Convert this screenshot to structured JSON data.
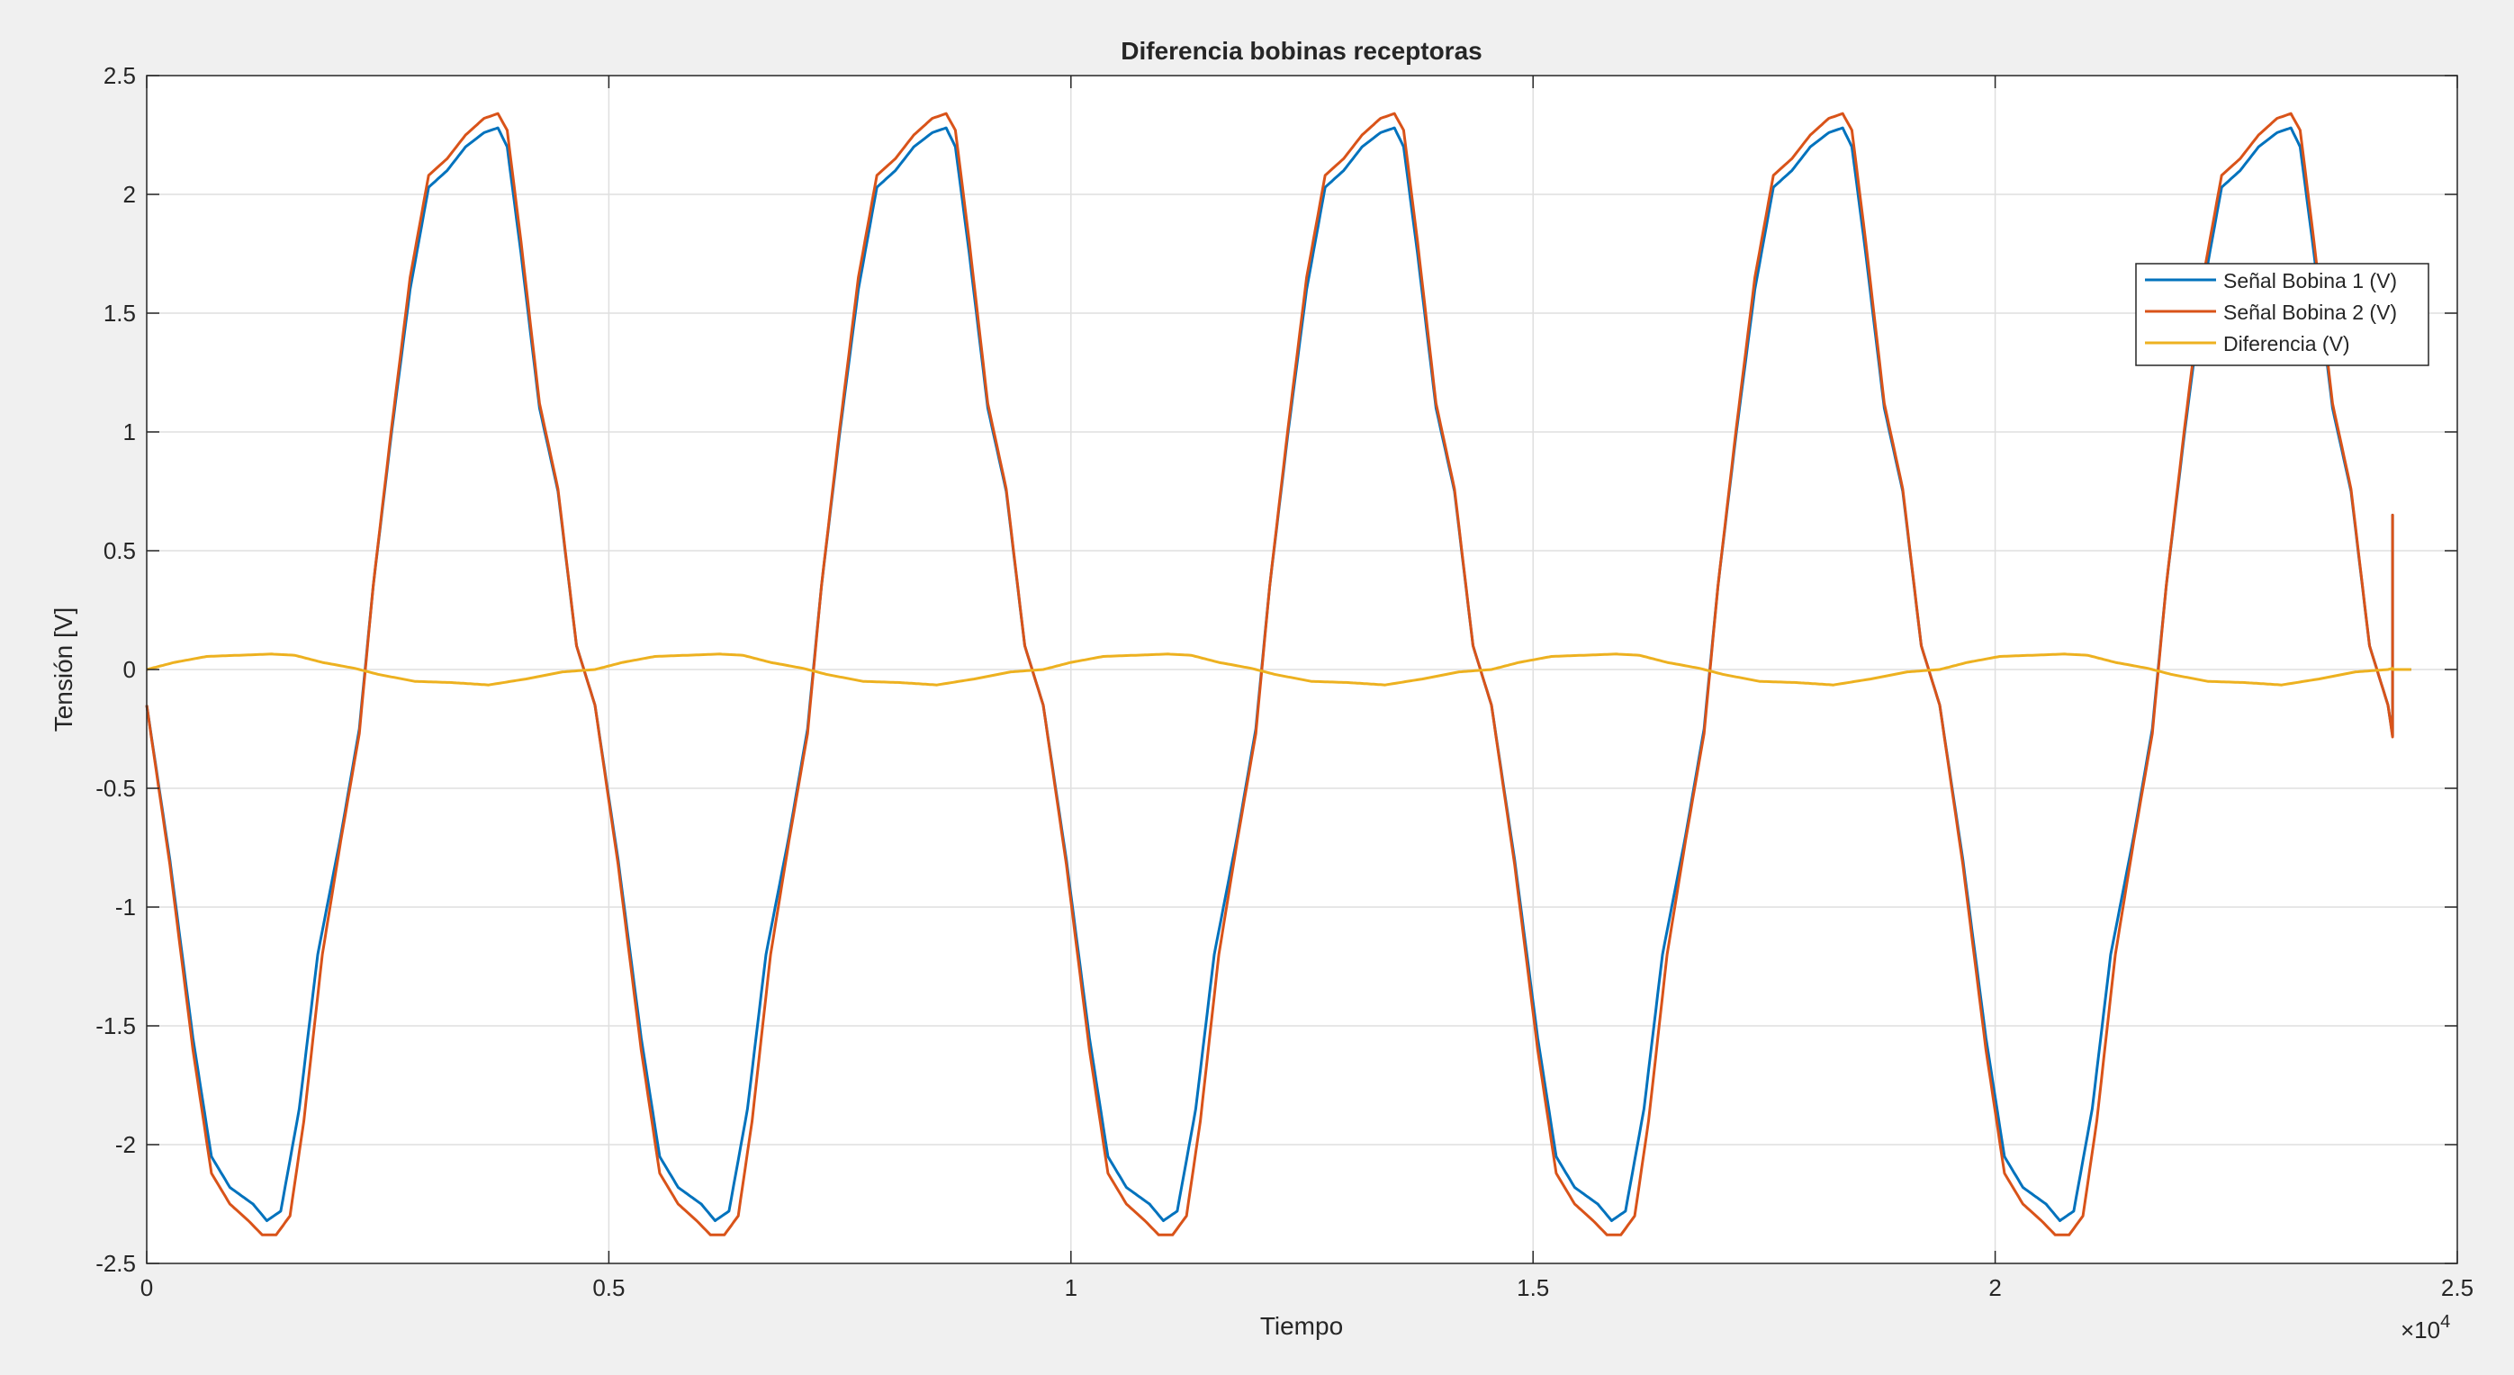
{
  "chart_data": {
    "type": "line",
    "title": "Diferencia bobinas receptoras",
    "xlabel": "Tiempo",
    "ylabel": "Tensión [V]",
    "x_exponent_label": "×10",
    "x_exponent_power": "4",
    "xlim": [
      0,
      25000
    ],
    "ylim": [
      -2.5,
      2.5
    ],
    "xticks": [
      0,
      5000,
      10000,
      15000,
      20000,
      25000
    ],
    "xtick_labels": [
      "0",
      "0.5",
      "1",
      "1.5",
      "2",
      "2.5"
    ],
    "yticks": [
      -2.5,
      -2,
      -1.5,
      -1,
      -0.5,
      0,
      0.5,
      1,
      1.5,
      2,
      2.5
    ],
    "ytick_labels": [
      "-2.5",
      "-2",
      "-1.5",
      "-1",
      "-0.5",
      "0",
      "0.5",
      "1",
      "1.5",
      "2",
      "2.5"
    ],
    "grid": true,
    "legend_position": "upper-right",
    "period": 4850,
    "end_x": 24300,
    "tail_x": 24500,
    "series": [
      {
        "name": "Señal Bobina 1 (V)",
        "color": "#0072BD",
        "waveform": [
          [
            0,
            -0.15
          ],
          [
            250,
            -0.8
          ],
          [
            500,
            -1.55
          ],
          [
            700,
            -2.05
          ],
          [
            900,
            -2.18
          ],
          [
            1150,
            -2.25
          ],
          [
            1300,
            -2.32
          ],
          [
            1450,
            -2.28
          ],
          [
            1650,
            -1.85
          ],
          [
            1850,
            -1.2
          ],
          [
            2100,
            -0.7
          ],
          [
            2300,
            -0.25
          ],
          [
            2450,
            0.35
          ],
          [
            2650,
            1.0
          ],
          [
            2850,
            1.6
          ],
          [
            3050,
            2.03
          ],
          [
            3250,
            2.1
          ],
          [
            3450,
            2.2
          ],
          [
            3650,
            2.26
          ],
          [
            3800,
            2.28
          ],
          [
            3900,
            2.2
          ],
          [
            4050,
            1.75
          ],
          [
            4250,
            1.1
          ],
          [
            4450,
            0.75
          ],
          [
            4650,
            0.1
          ],
          [
            4850,
            -0.15
          ]
        ],
        "end_value": 0.65
      },
      {
        "name": "Señal Bobina 2 (V)",
        "color": "#D95319",
        "waveform": [
          [
            0,
            -0.15
          ],
          [
            250,
            -0.82
          ],
          [
            500,
            -1.6
          ],
          [
            700,
            -2.12
          ],
          [
            900,
            -2.25
          ],
          [
            1100,
            -2.32
          ],
          [
            1250,
            -2.38
          ],
          [
            1400,
            -2.38
          ],
          [
            1550,
            -2.3
          ],
          [
            1700,
            -1.9
          ],
          [
            1900,
            -1.2
          ],
          [
            2100,
            -0.72
          ],
          [
            2300,
            -0.27
          ],
          [
            2450,
            0.35
          ],
          [
            2650,
            1.02
          ],
          [
            2850,
            1.65
          ],
          [
            3050,
            2.08
          ],
          [
            3250,
            2.15
          ],
          [
            3450,
            2.25
          ],
          [
            3650,
            2.32
          ],
          [
            3800,
            2.34
          ],
          [
            3900,
            2.27
          ],
          [
            4050,
            1.8
          ],
          [
            4250,
            1.12
          ],
          [
            4450,
            0.76
          ],
          [
            4650,
            0.1
          ],
          [
            4850,
            -0.15
          ]
        ],
        "end_value": 0.65
      },
      {
        "name": "Diferencia (V)",
        "color": "#EDB120",
        "waveform": [
          [
            0,
            0.0
          ],
          [
            300,
            0.03
          ],
          [
            650,
            0.055
          ],
          [
            1000,
            0.06
          ],
          [
            1350,
            0.065
          ],
          [
            1600,
            0.06
          ],
          [
            1900,
            0.03
          ],
          [
            2250,
            0.005
          ],
          [
            2500,
            -0.02
          ],
          [
            2900,
            -0.05
          ],
          [
            3300,
            -0.055
          ],
          [
            3700,
            -0.065
          ],
          [
            4100,
            -0.04
          ],
          [
            4500,
            -0.01
          ],
          [
            4850,
            0.0
          ]
        ],
        "end_value": 0.0
      }
    ]
  }
}
